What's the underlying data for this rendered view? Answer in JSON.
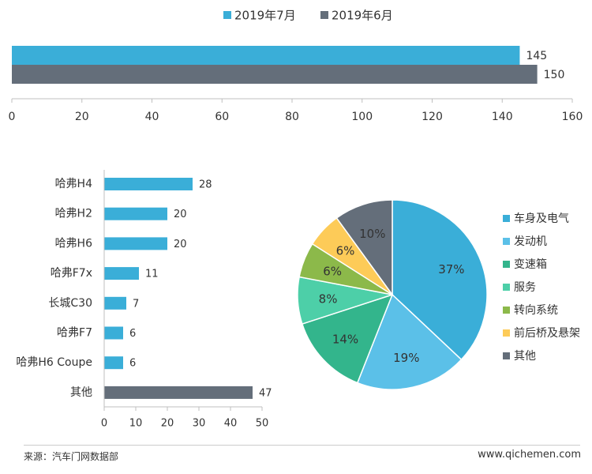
{
  "chart_data": [
    {
      "type": "bar",
      "orientation": "horizontal",
      "legend": [
        "2019年7月",
        "2019年6月"
      ],
      "series": [
        {
          "name": "2019年7月",
          "values": [
            145
          ],
          "color": "#3AAED8"
        },
        {
          "name": "2019年6月",
          "values": [
            150
          ],
          "color": "#646E7A"
        }
      ],
      "xlim": [
        0,
        160
      ],
      "xticks": [
        0,
        20,
        40,
        60,
        80,
        100,
        120,
        140,
        160
      ],
      "legend_position": "top"
    },
    {
      "type": "bar",
      "orientation": "horizontal",
      "categories": [
        "哈弗H4",
        "哈弗H2",
        "哈弗H6",
        "哈弗F7x",
        "长城C30",
        "哈弗F7",
        "哈弗H6 Coupe",
        "其他"
      ],
      "values": [
        28,
        20,
        20,
        11,
        7,
        6,
        6,
        47
      ],
      "colors": [
        "#3AAED8",
        "#3AAED8",
        "#3AAED8",
        "#3AAED8",
        "#3AAED8",
        "#3AAED8",
        "#3AAED8",
        "#646E7A"
      ],
      "xlim": [
        0,
        50
      ],
      "xticks": [
        0,
        10,
        20,
        30,
        40,
        50
      ]
    },
    {
      "type": "pie",
      "labels": [
        "车身及电气",
        "发动机",
        "变速箱",
        "服务",
        "转向系统",
        "前后桥及悬架",
        "其他"
      ],
      "values": [
        37,
        19,
        14,
        8,
        6,
        6,
        10
      ],
      "value_labels": [
        "37%",
        "19%",
        "14%",
        "8%",
        "6%",
        "6%",
        "10%"
      ],
      "colors": [
        "#3AAED8",
        "#5BC0E8",
        "#33B58C",
        "#4DCFA8",
        "#8CB94A",
        "#FDCB58",
        "#646E7A"
      ],
      "legend_position": "right"
    }
  ],
  "footer": {
    "source": "来源：汽车门网数据部",
    "website": "www.qichemen.com"
  }
}
